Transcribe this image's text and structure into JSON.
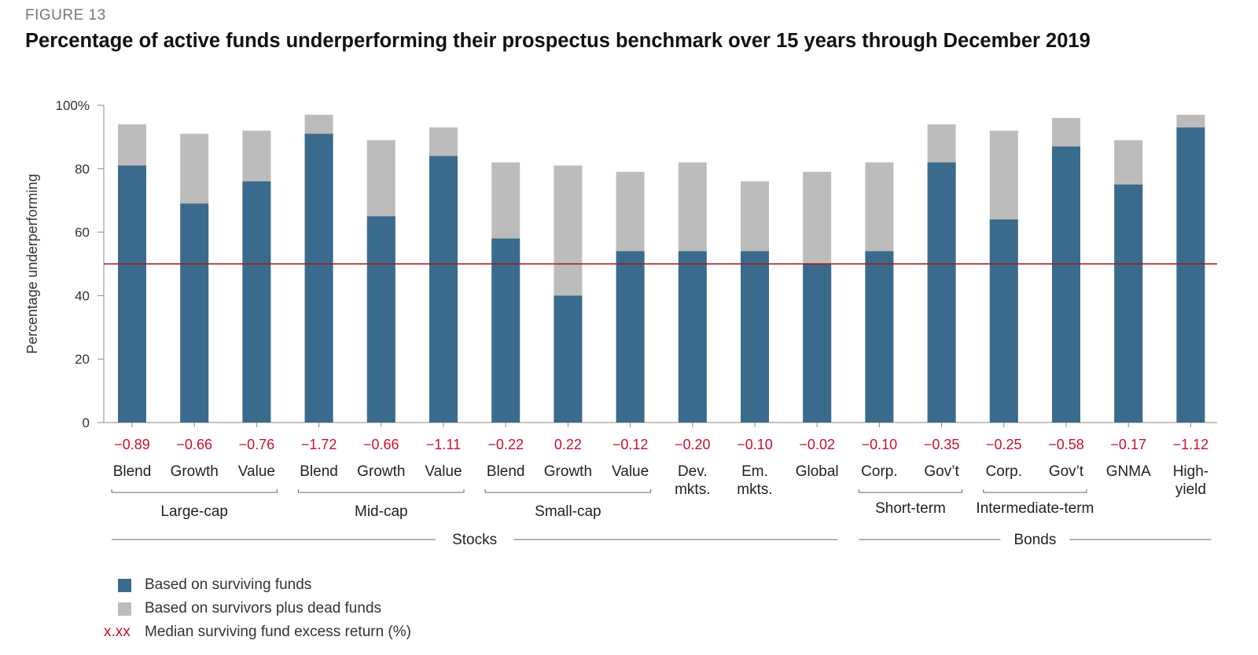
{
  "figure_label": "FIGURE 13",
  "chart_data": {
    "type": "bar",
    "title": "Percentage of active funds underperforming their prospectus benchmark over 15 years through December 2019",
    "ylabel": "Percentage underperforming",
    "ylim": [
      0,
      100
    ],
    "yticks": [
      "0",
      "20",
      "40",
      "60",
      "80",
      "100%"
    ],
    "reference_line": 50,
    "categories": [
      {
        "label": [
          "Blend"
        ],
        "return": "−0.89"
      },
      {
        "label": [
          "Growth"
        ],
        "return": "−0.66"
      },
      {
        "label": [
          "Value"
        ],
        "return": "−0.76"
      },
      {
        "label": [
          "Blend"
        ],
        "return": "−1.72"
      },
      {
        "label": [
          "Growth"
        ],
        "return": "−0.66"
      },
      {
        "label": [
          "Value"
        ],
        "return": "−1.11"
      },
      {
        "label": [
          "Blend"
        ],
        "return": "−0.22"
      },
      {
        "label": [
          "Growth"
        ],
        "return": "0.22"
      },
      {
        "label": [
          "Value"
        ],
        "return": "−0.12"
      },
      {
        "label": [
          "Dev.",
          "mkts."
        ],
        "return": "−0.20"
      },
      {
        "label": [
          "Em.",
          "mkts."
        ],
        "return": "−0.10"
      },
      {
        "label": [
          "Global"
        ],
        "return": "−0.02"
      },
      {
        "label": [
          "Corp."
        ],
        "return": "−0.10"
      },
      {
        "label": [
          "Gov’t"
        ],
        "return": "−0.35"
      },
      {
        "label": [
          "Corp."
        ],
        "return": "−0.25"
      },
      {
        "label": [
          "Gov’t"
        ],
        "return": "−0.58"
      },
      {
        "label": [
          "GNMA"
        ],
        "return": "−0.17"
      },
      {
        "label": [
          "High-",
          "yield"
        ],
        "return": "−1.12"
      }
    ],
    "series": [
      {
        "name": "Based on surviving funds",
        "color": "#3b6b8c",
        "values": [
          81,
          69,
          76,
          91,
          65,
          84,
          58,
          40,
          54,
          54,
          54,
          50,
          54,
          82,
          64,
          87,
          75,
          93
        ]
      },
      {
        "name": "Based on survivors plus dead funds",
        "color": "#bcbcbc",
        "values": [
          94,
          91,
          92,
          97,
          89,
          93,
          82,
          81,
          79,
          82,
          76,
          79,
          82,
          94,
          92,
          96,
          89,
          97
        ]
      }
    ],
    "subgroups": [
      {
        "label": "Large-cap",
        "from": 0,
        "to": 2
      },
      {
        "label": "Mid-cap",
        "from": 3,
        "to": 5
      },
      {
        "label": "Small-cap",
        "from": 6,
        "to": 8
      },
      {
        "label": "Short-term",
        "from": 12,
        "to": 13
      },
      {
        "label": "Intermediate-term",
        "from": 14,
        "to": 15
      }
    ],
    "groups": [
      {
        "label": "Stocks",
        "from": 0,
        "to": 11
      },
      {
        "label": "Bonds",
        "from": 12,
        "to": 17
      }
    ]
  },
  "legend": {
    "surviving": "Based on surviving funds",
    "dead": "Based on survivors plus dead funds",
    "median_marker": "x.xx",
    "median": "Median surviving fund excess return (%)"
  },
  "colors": {
    "surviving": "#3b6b8c",
    "dead": "#bcbcbc",
    "accent": "#c8102e"
  }
}
